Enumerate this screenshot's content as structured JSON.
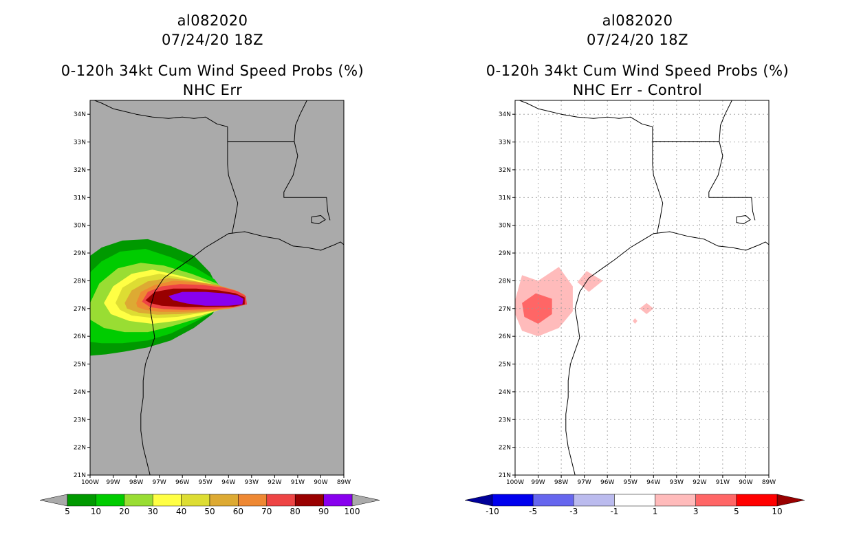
{
  "chart_data": [
    {
      "type": "heatmap",
      "storm_id": "al082020",
      "datetime": "07/24/20 18Z",
      "title": "0-120h 34kt Cum Wind Speed Probs (%)",
      "subtitle": "NHC Err",
      "lon_range": [
        -100,
        -89
      ],
      "lat_range": [
        21,
        34.5
      ],
      "x_tick_labels": [
        "100W",
        "99W",
        "98W",
        "97W",
        "96W",
        "95W",
        "94W",
        "93W",
        "92W",
        "91W",
        "90W",
        "89W"
      ],
      "y_tick_labels": [
        "21N",
        "22N",
        "23N",
        "24N",
        "25N",
        "26N",
        "27N",
        "28N",
        "29N",
        "30N",
        "31N",
        "32N",
        "33N",
        "34N"
      ],
      "background_color": "#aaaaaa",
      "grid": false,
      "colorbar": {
        "levels": [
          "5",
          "10",
          "20",
          "30",
          "40",
          "50",
          "60",
          "70",
          "80",
          "90",
          "100"
        ],
        "colors": [
          "#009900",
          "#00cc00",
          "#99dd33",
          "#ffff44",
          "#dddd33",
          "#ddaa33",
          "#ee8833",
          "#ee4444",
          "#990000",
          "#8800ee"
        ],
        "under_color": "#aaaaaa",
        "over_color": "#aaaaaa"
      },
      "contours": [
        {
          "level": 5,
          "color": "#009900",
          "points": [
            [
              -100,
              28.9
            ],
            [
              -99.5,
              29.2
            ],
            [
              -98.6,
              29.45
            ],
            [
              -97.5,
              29.5
            ],
            [
              -96.5,
              29.25
            ],
            [
              -95.5,
              28.9
            ],
            [
              -94.8,
              28.3
            ],
            [
              -94.5,
              27.8
            ],
            [
              -94.3,
              27.3
            ],
            [
              -94.7,
              26.8
            ],
            [
              -95.5,
              26.3
            ],
            [
              -96.5,
              25.85
            ],
            [
              -97.5,
              25.6
            ],
            [
              -98.5,
              25.45
            ],
            [
              -99.3,
              25.35
            ],
            [
              -100,
              25.3
            ]
          ]
        },
        {
          "level": 10,
          "color": "#00cc00",
          "points": [
            [
              -100,
              28.3
            ],
            [
              -99.5,
              28.7
            ],
            [
              -98.7,
              29.05
            ],
            [
              -97.6,
              29.15
            ],
            [
              -96.5,
              28.85
            ],
            [
              -95.5,
              28.5
            ],
            [
              -94.6,
              28.05
            ],
            [
              -94.2,
              27.6
            ],
            [
              -94.1,
              27.3
            ],
            [
              -94.6,
              26.9
            ],
            [
              -95.5,
              26.5
            ],
            [
              -96.5,
              26.1
            ],
            [
              -97.5,
              25.85
            ],
            [
              -98.6,
              25.75
            ],
            [
              -99.5,
              25.75
            ],
            [
              -100,
              25.8
            ]
          ]
        },
        {
          "level": 20,
          "color": "#99dd33",
          "points": [
            [
              -100,
              27.2
            ],
            [
              -99.6,
              27.9
            ],
            [
              -98.8,
              28.45
            ],
            [
              -97.8,
              28.65
            ],
            [
              -96.8,
              28.55
            ],
            [
              -95.6,
              28.25
            ],
            [
              -94.5,
              27.9
            ],
            [
              -93.9,
              27.55
            ],
            [
              -93.85,
              27.3
            ],
            [
              -94.3,
              27.0
            ],
            [
              -95.3,
              26.65
            ],
            [
              -96.5,
              26.35
            ],
            [
              -97.5,
              26.15
            ],
            [
              -98.5,
              26.15
            ],
            [
              -99.4,
              26.3
            ],
            [
              -100,
              26.6
            ]
          ]
        },
        {
          "level": 30,
          "color": "#ffff44",
          "points": [
            [
              -99.4,
              27.2
            ],
            [
              -99.0,
              27.8
            ],
            [
              -98.2,
              28.25
            ],
            [
              -97.3,
              28.4
            ],
            [
              -96.2,
              28.2
            ],
            [
              -95.0,
              27.95
            ],
            [
              -94.0,
              27.7
            ],
            [
              -93.6,
              27.45
            ],
            [
              -93.65,
              27.2
            ],
            [
              -94.2,
              27.0
            ],
            [
              -95.2,
              26.75
            ],
            [
              -96.3,
              26.55
            ],
            [
              -97.3,
              26.45
            ],
            [
              -98.3,
              26.55
            ],
            [
              -99.1,
              26.8
            ]
          ]
        },
        {
          "level": 40,
          "color": "#dddd33",
          "points": [
            [
              -98.9,
              27.2
            ],
            [
              -98.6,
              27.75
            ],
            [
              -97.9,
              28.1
            ],
            [
              -97.0,
              28.25
            ],
            [
              -96.0,
              28.1
            ],
            [
              -95.0,
              27.9
            ],
            [
              -94.0,
              27.7
            ],
            [
              -93.5,
              27.5
            ],
            [
              -93.5,
              27.15
            ],
            [
              -94.0,
              27.0
            ],
            [
              -95.1,
              26.85
            ],
            [
              -96.2,
              26.7
            ],
            [
              -97.2,
              26.65
            ],
            [
              -98.2,
              26.75
            ],
            [
              -98.7,
              26.95
            ]
          ]
        },
        {
          "level": 50,
          "color": "#ddaa33",
          "points": [
            [
              -98.5,
              27.2
            ],
            [
              -98.2,
              27.65
            ],
            [
              -97.5,
              27.98
            ],
            [
              -96.6,
              28.1
            ],
            [
              -95.6,
              28.0
            ],
            [
              -94.5,
              27.85
            ],
            [
              -93.8,
              27.68
            ],
            [
              -93.4,
              27.5
            ],
            [
              -93.35,
              27.15
            ],
            [
              -93.9,
              27.0
            ],
            [
              -95.0,
              26.88
            ],
            [
              -96.1,
              26.8
            ],
            [
              -97.1,
              26.78
            ],
            [
              -97.9,
              26.85
            ],
            [
              -98.4,
              27.0
            ]
          ]
        },
        {
          "level": 60,
          "color": "#ee8833",
          "points": [
            [
              -98.0,
              27.2
            ],
            [
              -97.8,
              27.6
            ],
            [
              -97.2,
              27.85
            ],
            [
              -96.4,
              28.0
            ],
            [
              -95.4,
              27.95
            ],
            [
              -94.4,
              27.82
            ],
            [
              -93.7,
              27.66
            ],
            [
              -93.3,
              27.5
            ],
            [
              -93.25,
              27.15
            ],
            [
              -93.8,
              27.02
            ],
            [
              -94.9,
              26.92
            ],
            [
              -96.0,
              26.88
            ],
            [
              -97.0,
              26.88
            ],
            [
              -97.6,
              26.95
            ],
            [
              -97.95,
              27.05
            ]
          ]
        },
        {
          "level": 70,
          "color": "#ee4444",
          "points": [
            [
              -97.75,
              27.25
            ],
            [
              -97.5,
              27.6
            ],
            [
              -96.9,
              27.8
            ],
            [
              -96.1,
              27.88
            ],
            [
              -95.1,
              27.85
            ],
            [
              -94.2,
              27.75
            ],
            [
              -93.6,
              27.62
            ],
            [
              -93.25,
              27.45
            ],
            [
              -93.2,
              27.15
            ],
            [
              -93.7,
              27.05
            ],
            [
              -94.8,
              26.98
            ],
            [
              -95.9,
              26.95
            ],
            [
              -96.8,
              26.98
            ],
            [
              -97.4,
              27.05
            ]
          ]
        },
        {
          "level": 80,
          "color": "#990000",
          "points": [
            [
              -97.6,
              27.3
            ],
            [
              -97.2,
              27.6
            ],
            [
              -96.4,
              27.72
            ],
            [
              -95.4,
              27.72
            ],
            [
              -94.4,
              27.65
            ],
            [
              -93.7,
              27.55
            ],
            [
              -93.3,
              27.4
            ],
            [
              -93.3,
              27.15
            ],
            [
              -93.8,
              27.07
            ],
            [
              -94.9,
              27.05
            ],
            [
              -95.9,
              27.05
            ],
            [
              -96.9,
              27.1
            ],
            [
              -97.4,
              27.2
            ]
          ]
        },
        {
          "level": 90,
          "color": "#8800ee",
          "points": [
            [
              -96.6,
              27.45
            ],
            [
              -96.0,
              27.6
            ],
            [
              -95.0,
              27.6
            ],
            [
              -94.2,
              27.55
            ],
            [
              -93.6,
              27.47
            ],
            [
              -93.35,
              27.35
            ],
            [
              -93.4,
              27.15
            ],
            [
              -94.0,
              27.1
            ],
            [
              -95.0,
              27.1
            ],
            [
              -95.8,
              27.18
            ],
            [
              -96.4,
              27.3
            ]
          ]
        }
      ]
    },
    {
      "type": "heatmap",
      "storm_id": "al082020",
      "datetime": "07/24/20 18Z",
      "title": "0-120h 34kt Cum Wind Speed Probs (%)",
      "subtitle": "NHC Err - Control",
      "lon_range": [
        -100,
        -89
      ],
      "lat_range": [
        21,
        34.5
      ],
      "x_tick_labels": [
        "100W",
        "99W",
        "98W",
        "97W",
        "96W",
        "95W",
        "94W",
        "93W",
        "92W",
        "91W",
        "90W",
        "89W"
      ],
      "y_tick_labels": [
        "21N",
        "22N",
        "23N",
        "24N",
        "25N",
        "26N",
        "27N",
        "28N",
        "29N",
        "30N",
        "31N",
        "32N",
        "33N",
        "34N"
      ],
      "background_color": "#ffffff",
      "grid": true,
      "colorbar": {
        "levels": [
          "-10",
          "-5",
          "-3",
          "-1",
          "1",
          "3",
          "5",
          "10"
        ],
        "colors": [
          "#0000ee",
          "#6666ee",
          "#bbbbee",
          "#ffffff",
          "#ffbbbb",
          "#ff6666",
          "#ff0000"
        ],
        "under_color": "#000099",
        "over_color": "#990000"
      },
      "contours": [
        {
          "level": 1,
          "color": "#ffbbbb",
          "points": [
            [
              -100,
              27.3
            ],
            [
              -99.7,
              28.2
            ],
            [
              -99.0,
              28.0
            ],
            [
              -98.1,
              28.5
            ],
            [
              -97.5,
              27.8
            ],
            [
              -97.5,
              26.9
            ],
            [
              -98.1,
              26.3
            ],
            [
              -99.0,
              26.0
            ],
            [
              -99.7,
              26.2
            ],
            [
              -100,
              26.8
            ]
          ]
        },
        {
          "level": 1,
          "color": "#ffbbbb",
          "points": [
            [
              -97.3,
              27.95
            ],
            [
              -96.9,
              28.35
            ],
            [
              -96.2,
              28.0
            ],
            [
              -96.8,
              27.6
            ]
          ]
        },
        {
          "level": 1,
          "color": "#ffbbbb",
          "points": [
            [
              -94.6,
              27.0
            ],
            [
              -94.3,
              27.2
            ],
            [
              -94.0,
              27.0
            ],
            [
              -94.3,
              26.8
            ]
          ]
        },
        {
          "level": 1,
          "color": "#ffbbbb",
          "points": [
            [
              -94.9,
              26.55
            ],
            [
              -94.8,
              26.65
            ],
            [
              -94.7,
              26.55
            ],
            [
              -94.8,
              26.45
            ]
          ]
        },
        {
          "level": 3,
          "color": "#ff6666",
          "points": [
            [
              -99.7,
              27.2
            ],
            [
              -99.1,
              27.55
            ],
            [
              -98.4,
              27.35
            ],
            [
              -98.4,
              26.8
            ],
            [
              -99.0,
              26.45
            ],
            [
              -99.6,
              26.7
            ]
          ]
        }
      ]
    }
  ],
  "geography": {
    "coastline": [
      [
        -97.4,
        21.0
      ],
      [
        -97.55,
        21.5
      ],
      [
        -97.7,
        22.0
      ],
      [
        -97.8,
        22.6
      ],
      [
        -97.8,
        23.2
      ],
      [
        -97.7,
        23.8
      ],
      [
        -97.7,
        24.4
      ],
      [
        -97.6,
        25.0
      ],
      [
        -97.35,
        25.6
      ],
      [
        -97.2,
        25.95
      ],
      [
        -97.3,
        26.5
      ],
      [
        -97.4,
        27.0
      ],
      [
        -97.2,
        27.6
      ],
      [
        -96.8,
        28.1
      ],
      [
        -96.3,
        28.4
      ],
      [
        -95.7,
        28.75
      ],
      [
        -95.0,
        29.2
      ],
      [
        -94.7,
        29.35
      ],
      [
        -94.0,
        29.7
      ],
      [
        -93.3,
        29.77
      ],
      [
        -92.5,
        29.6
      ],
      [
        -91.8,
        29.5
      ],
      [
        -91.2,
        29.25
      ],
      [
        -90.6,
        29.2
      ],
      [
        -90.0,
        29.1
      ],
      [
        -89.4,
        29.3
      ],
      [
        -89.15,
        29.4
      ],
      [
        -89.0,
        29.3
      ]
    ],
    "tx_ok_border": [
      [
        -100,
        34.56
      ],
      [
        -99.5,
        34.4
      ],
      [
        -99.0,
        34.2
      ],
      [
        -98.5,
        34.1
      ],
      [
        -98.0,
        34.0
      ],
      [
        -97.3,
        33.9
      ],
      [
        -96.6,
        33.85
      ],
      [
        -96.0,
        33.9
      ],
      [
        -95.5,
        33.85
      ],
      [
        -95.0,
        33.9
      ],
      [
        -94.5,
        33.65
      ],
      [
        -94.04,
        33.55
      ]
    ],
    "tx_la_border": [
      [
        -94.04,
        33.55
      ],
      [
        -94.04,
        33.0
      ],
      [
        -94.04,
        32.2
      ],
      [
        -94.0,
        31.8
      ],
      [
        -93.8,
        31.3
      ],
      [
        -93.6,
        30.8
      ],
      [
        -93.7,
        30.3
      ],
      [
        -93.85,
        29.7
      ]
    ],
    "ar_la_border": [
      [
        -94.04,
        33.02
      ],
      [
        -91.15,
        33.02
      ]
    ],
    "la_ms_border": [
      [
        -91.15,
        33.02
      ],
      [
        -91.0,
        32.5
      ],
      [
        -91.2,
        31.8
      ],
      [
        -91.6,
        31.2
      ],
      [
        -91.6,
        31.0
      ],
      [
        -89.75,
        31.0
      ],
      [
        -89.7,
        30.5
      ],
      [
        -89.6,
        30.18
      ]
    ],
    "ms_river": [
      [
        -91.15,
        33.02
      ],
      [
        -91.1,
        33.6
      ],
      [
        -90.9,
        34.0
      ],
      [
        -90.6,
        34.5
      ]
    ],
    "lake_pontchartrain": [
      [
        -90.4,
        30.3
      ],
      [
        -90.0,
        30.35
      ],
      [
        -89.8,
        30.2
      ],
      [
        -90.1,
        30.05
      ],
      [
        -90.4,
        30.1
      ]
    ]
  }
}
